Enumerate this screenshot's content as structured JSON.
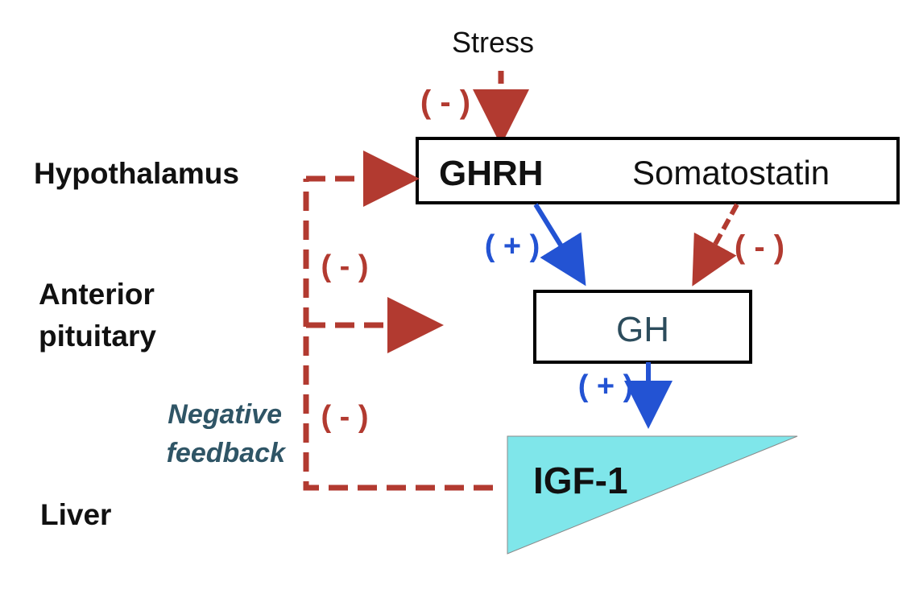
{
  "colors": {
    "inhibit": "#b23a30",
    "stimulate": "#2353d3",
    "box_border": "#000000",
    "gh_text": "#2c4c5c",
    "feedback_text": "#2f5566",
    "triangle_fill": "#7fe6ea",
    "text": "#111111"
  },
  "stress": {
    "label": "Stress",
    "sign": "( - )"
  },
  "levels": {
    "hypothalamus": "Hypothalamus",
    "anterior_line1": "Anterior",
    "anterior_line2": "pituitary",
    "liver": "Liver"
  },
  "hypothalamus_box": {
    "ghrh": "GHRH",
    "somatostatin": "Somatostatin"
  },
  "gh_box": {
    "label": "GH"
  },
  "igf": {
    "label": "IGF-1"
  },
  "signs": {
    "ghrh_to_gh": "( + )",
    "somatostatin_to_gh": "( - )",
    "gh_to_igf": "( + )",
    "feedback_upper": "( - )",
    "feedback_lower": "( - )"
  },
  "feedback": {
    "line1": "Negative",
    "line2": "feedback"
  }
}
